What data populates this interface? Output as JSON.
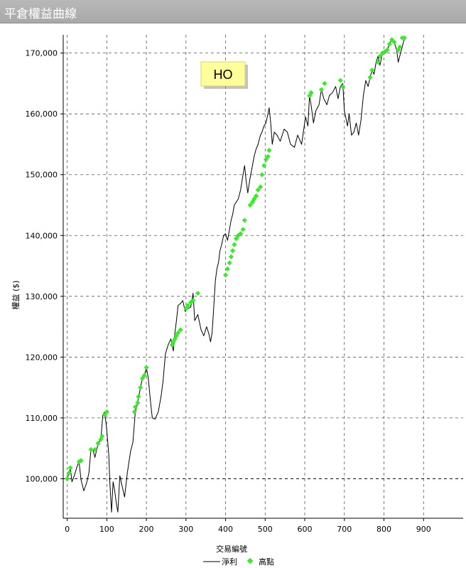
{
  "window": {
    "title": "平倉權益曲線"
  },
  "chart_data": {
    "type": "line",
    "symbol_label": "HO",
    "xlabel": "交易編號",
    "ylabel": "權益 ($)",
    "xlim": [
      -10,
      1000
    ],
    "ylim": [
      93500,
      173000
    ],
    "xticks": [
      0,
      100,
      200,
      300,
      400,
      500,
      600,
      700,
      800,
      900
    ],
    "yticks": [
      100000,
      110000,
      120000,
      130000,
      140000,
      150000,
      160000,
      170000
    ],
    "ytick_labels": [
      "100,000",
      "110,000",
      "120,000",
      "130,000",
      "140,000",
      "150,000",
      "160,000",
      "170,000"
    ],
    "xtick_labels": [
      "0",
      "100",
      "200",
      "300",
      "400",
      "500",
      "600",
      "700",
      "800",
      "900"
    ],
    "baseline": 100000,
    "grid": true,
    "legend_position": "bottom",
    "series": [
      {
        "name": "淨利",
        "color": "#000000",
        "points": [
          [
            0,
            100000
          ],
          [
            5,
            101000
          ],
          [
            8,
            101800
          ],
          [
            12,
            99500
          ],
          [
            18,
            100500
          ],
          [
            25,
            102000
          ],
          [
            30,
            102800
          ],
          [
            35,
            99800
          ],
          [
            42,
            98000
          ],
          [
            50,
            99500
          ],
          [
            55,
            101000
          ],
          [
            60,
            104800
          ],
          [
            65,
            104800
          ],
          [
            70,
            103500
          ],
          [
            78,
            105800
          ],
          [
            85,
            106500
          ],
          [
            90,
            110500
          ],
          [
            95,
            111000
          ],
          [
            100,
            108000
          ],
          [
            105,
            104000
          ],
          [
            108,
            99000
          ],
          [
            112,
            94500
          ],
          [
            116,
            99500
          ],
          [
            120,
            98000
          ],
          [
            124,
            96000
          ],
          [
            128,
            94500
          ],
          [
            133,
            100500
          ],
          [
            138,
            99000
          ],
          [
            145,
            97000
          ],
          [
            152,
            101000
          ],
          [
            160,
            104500
          ],
          [
            166,
            106000
          ],
          [
            172,
            111000
          ],
          [
            178,
            112500
          ],
          [
            185,
            115000
          ],
          [
            190,
            116500
          ],
          [
            195,
            117000
          ],
          [
            200,
            118300
          ],
          [
            205,
            116500
          ],
          [
            210,
            113000
          ],
          [
            215,
            110000
          ],
          [
            222,
            109800
          ],
          [
            230,
            111000
          ],
          [
            237,
            113500
          ],
          [
            242,
            116000
          ],
          [
            248,
            120500
          ],
          [
            255,
            122000
          ],
          [
            262,
            123000
          ],
          [
            268,
            121000
          ],
          [
            272,
            124000
          ],
          [
            276,
            126000
          ],
          [
            280,
            128500
          ],
          [
            286,
            128800
          ],
          [
            292,
            129300
          ],
          [
            298,
            127500
          ],
          [
            305,
            128000
          ],
          [
            312,
            128200
          ],
          [
            318,
            130500
          ],
          [
            322,
            126000
          ],
          [
            330,
            127000
          ],
          [
            338,
            124500
          ],
          [
            345,
            123500
          ],
          [
            352,
            125000
          ],
          [
            358,
            123800
          ],
          [
            362,
            122500
          ],
          [
            366,
            124000
          ],
          [
            370,
            128000
          ],
          [
            374,
            132500
          ],
          [
            378,
            134500
          ],
          [
            382,
            135500
          ],
          [
            386,
            137500
          ],
          [
            390,
            138500
          ],
          [
            395,
            140000
          ],
          [
            400,
            140300
          ],
          [
            405,
            139200
          ],
          [
            410,
            141000
          ],
          [
            414,
            142500
          ],
          [
            418,
            143500
          ],
          [
            422,
            145000
          ],
          [
            427,
            145500
          ],
          [
            432,
            146000
          ],
          [
            438,
            147500
          ],
          [
            444,
            150000
          ],
          [
            448,
            151500
          ],
          [
            452,
            149000
          ],
          [
            456,
            147000
          ],
          [
            462,
            149500
          ],
          [
            468,
            151500
          ],
          [
            472,
            153000
          ],
          [
            477,
            154200
          ],
          [
            482,
            155000
          ],
          [
            488,
            156500
          ],
          [
            492,
            157000
          ],
          [
            497,
            158000
          ],
          [
            502,
            158500
          ],
          [
            507,
            160000
          ],
          [
            510,
            161000
          ],
          [
            514,
            158500
          ],
          [
            518,
            155000
          ],
          [
            523,
            157000
          ],
          [
            530,
            156500
          ],
          [
            538,
            155500
          ],
          [
            548,
            157500
          ],
          [
            556,
            157000
          ],
          [
            564,
            155000
          ],
          [
            574,
            154500
          ],
          [
            582,
            156500
          ],
          [
            592,
            155000
          ],
          [
            602,
            159500
          ],
          [
            608,
            158000
          ],
          [
            612,
            163000
          ],
          [
            616,
            161500
          ],
          [
            622,
            158500
          ],
          [
            628,
            160500
          ],
          [
            636,
            161500
          ],
          [
            642,
            164000
          ],
          [
            648,
            162500
          ],
          [
            656,
            161500
          ],
          [
            662,
            163000
          ],
          [
            670,
            163500
          ],
          [
            678,
            164500
          ],
          [
            684,
            162500
          ],
          [
            690,
            164500
          ],
          [
            696,
            165000
          ],
          [
            700,
            160500
          ],
          [
            708,
            158000
          ],
          [
            712,
            160000
          ],
          [
            718,
            156500
          ],
          [
            724,
            157000
          ],
          [
            730,
            158500
          ],
          [
            736,
            156500
          ],
          [
            742,
            159000
          ],
          [
            748,
            163000
          ],
          [
            754,
            165500
          ],
          [
            760,
            164500
          ],
          [
            765,
            166000
          ],
          [
            770,
            167200
          ],
          [
            775,
            166500
          ],
          [
            780,
            168500
          ],
          [
            785,
            169500
          ],
          [
            790,
            168000
          ],
          [
            796,
            170000
          ],
          [
            802,
            170200
          ],
          [
            808,
            170500
          ],
          [
            814,
            171500
          ],
          [
            820,
            172200
          ],
          [
            826,
            171800
          ],
          [
            832,
            170500
          ],
          [
            836,
            168500
          ],
          [
            840,
            169500
          ],
          [
            846,
            171000
          ],
          [
            852,
            172500
          ]
        ]
      },
      {
        "name": "高點",
        "color": "#33ee22",
        "x": [
          0,
          5,
          8,
          30,
          35,
          60,
          70,
          78,
          85,
          88,
          95,
          100,
          170,
          172,
          178,
          180,
          185,
          190,
          195,
          200,
          265,
          268,
          272,
          276,
          280,
          286,
          300,
          305,
          312,
          318,
          330,
          400,
          405,
          410,
          414,
          418,
          422,
          427,
          432,
          438,
          444,
          448,
          462,
          468,
          472,
          477,
          482,
          488,
          492,
          497,
          502,
          507,
          510,
          612,
          616,
          642,
          650,
          690,
          696,
          765,
          770,
          785,
          790,
          796,
          802,
          808,
          814,
          820,
          826,
          836,
          840,
          846,
          852
        ],
        "y": [
          100000,
          101000,
          101800,
          102800,
          103000,
          104800,
          104800,
          105800,
          106500,
          107000,
          110500,
          111000,
          111000,
          111800,
          112500,
          113500,
          115000,
          116500,
          117000,
          118300,
          122000,
          122500,
          123000,
          123500,
          124000,
          124500,
          128000,
          128500,
          129000,
          129300,
          130500,
          133500,
          134500,
          135500,
          136500,
          137500,
          138500,
          139500,
          140000,
          140300,
          141000,
          142500,
          145000,
          145500,
          146000,
          146500,
          147500,
          148000,
          150000,
          151500,
          152500,
          153000,
          154000,
          163000,
          163500,
          164000,
          165000,
          165500,
          164500,
          166000,
          167200,
          168500,
          169500,
          170000,
          170200,
          170500,
          171500,
          172200,
          171800,
          170500,
          171000,
          172500,
          172500
        ]
      }
    ]
  }
}
